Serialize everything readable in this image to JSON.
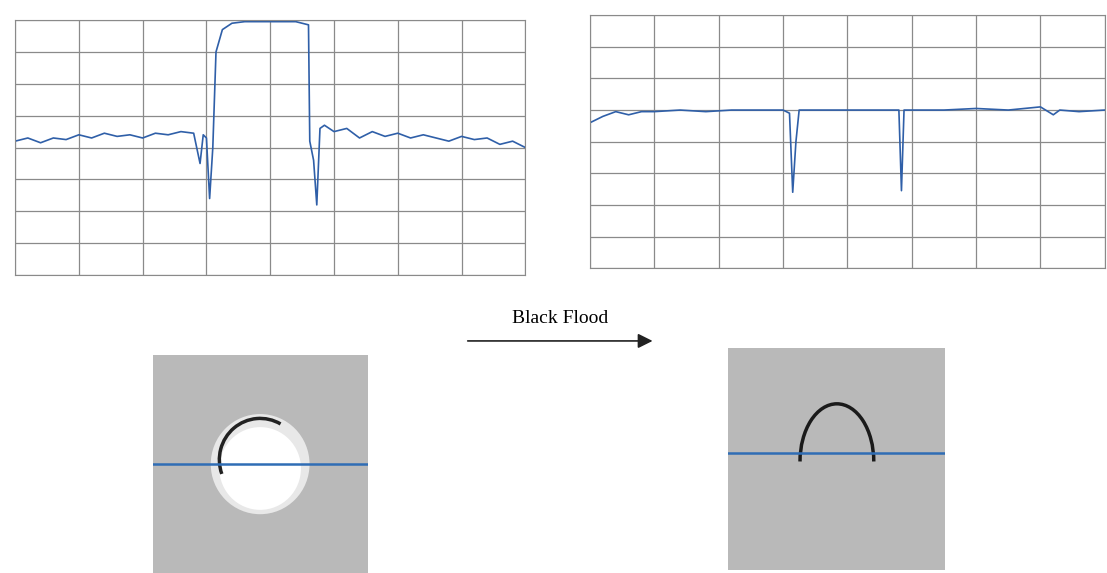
{
  "chart_data": [
    {
      "type": "line",
      "x": [
        0.0,
        0.2,
        0.4,
        0.6,
        0.8,
        1.0,
        1.2,
        1.4,
        1.6,
        1.8,
        2.0,
        2.2,
        2.4,
        2.6,
        2.8,
        2.9,
        2.95,
        3.0,
        3.05,
        3.1,
        3.15,
        3.25,
        3.4,
        3.6,
        4.4,
        4.6,
        4.62,
        4.68,
        4.73,
        4.78,
        4.85,
        5.0,
        5.2,
        5.4,
        5.6,
        5.8,
        6.0,
        6.2,
        6.4,
        6.6,
        6.8,
        7.0,
        7.2,
        7.4,
        7.6,
        7.8,
        8.0
      ],
      "values": [
        4.2,
        4.3,
        4.15,
        4.3,
        4.25,
        4.4,
        4.3,
        4.45,
        4.35,
        4.4,
        4.3,
        4.45,
        4.4,
        4.5,
        4.45,
        3.5,
        4.4,
        4.3,
        2.4,
        4.0,
        7.0,
        7.7,
        7.9,
        7.95,
        7.95,
        7.85,
        4.2,
        3.6,
        2.2,
        4.6,
        4.7,
        4.5,
        4.6,
        4.3,
        4.5,
        4.35,
        4.45,
        4.3,
        4.4,
        4.3,
        4.2,
        4.35,
        4.25,
        4.3,
        4.1,
        4.2,
        4.0
      ],
      "color": "#2f5fa8",
      "xlim": [
        0,
        8
      ],
      "ylim": [
        0,
        8
      ],
      "xticks": [
        0,
        1,
        2,
        3,
        4,
        5,
        6,
        7,
        8
      ],
      "yticks": [
        0,
        1,
        2,
        3,
        4,
        5,
        6,
        7,
        8
      ],
      "grid": true,
      "tick_labels": false
    },
    {
      "type": "line",
      "x": [
        0.0,
        0.2,
        0.4,
        0.6,
        0.8,
        1.0,
        1.4,
        1.8,
        2.2,
        2.6,
        3.0,
        3.1,
        3.15,
        3.2,
        3.25,
        3.6,
        4.0,
        4.4,
        4.8,
        4.84,
        4.88,
        5.5,
        6.0,
        6.5,
        7.0,
        7.2,
        7.3,
        7.6,
        8.0
      ],
      "values": [
        4.6,
        4.8,
        4.95,
        4.85,
        4.95,
        4.95,
        5.0,
        4.95,
        5.0,
        5.0,
        5.0,
        4.9,
        2.4,
        4.0,
        5.0,
        5.0,
        5.0,
        5.0,
        5.0,
        2.45,
        5.0,
        5.0,
        5.05,
        5.0,
        5.1,
        4.85,
        5.0,
        4.95,
        5.0
      ],
      "color": "#2f5fa8",
      "xlim": [
        0,
        8
      ],
      "ylim": [
        0,
        8
      ],
      "xticks": [
        0,
        1,
        2,
        3,
        4,
        5,
        6,
        7,
        8
      ],
      "yticks": [
        0,
        1,
        2,
        3,
        4,
        5,
        6,
        7,
        8
      ],
      "grid": true,
      "tick_labels": false
    }
  ],
  "arrow_label": "Black Flood"
}
